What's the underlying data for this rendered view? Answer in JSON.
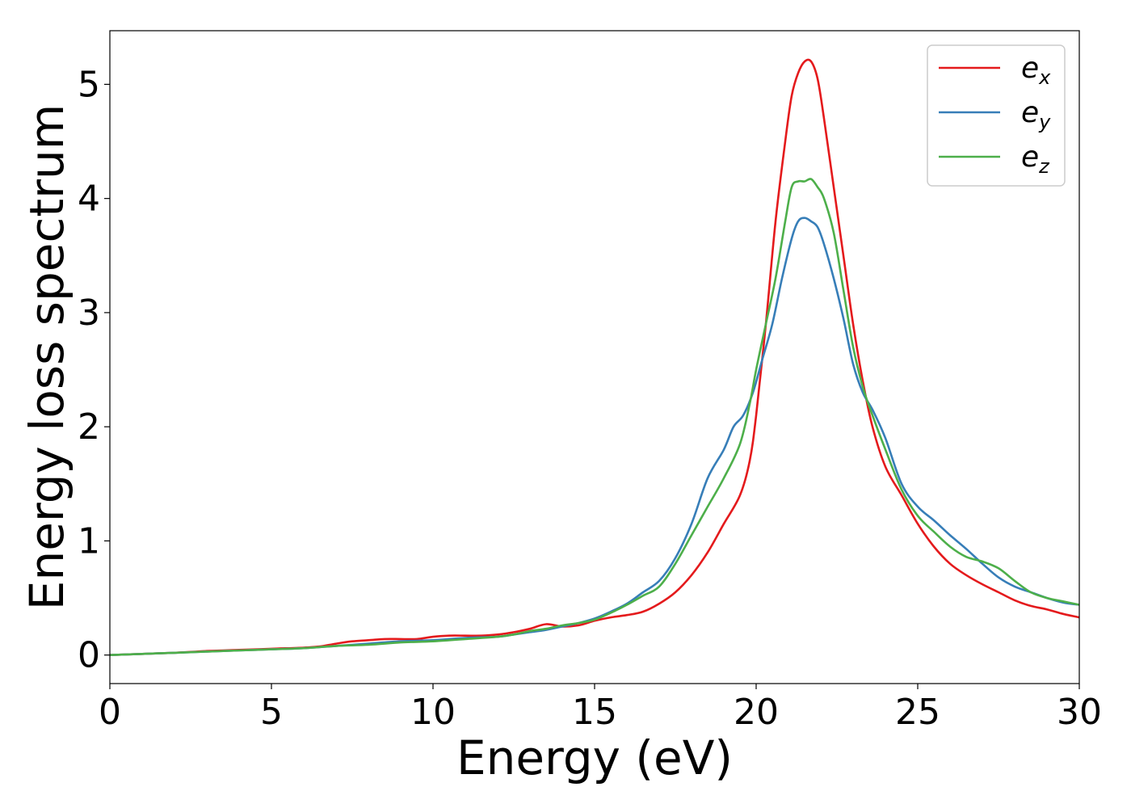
{
  "chart_data": {
    "type": "line",
    "xlabel": "Energy (eV)",
    "ylabel": "Energy loss spectrum",
    "xlim": [
      0,
      30
    ],
    "ylim": [
      -0.25,
      5.47
    ],
    "xticks": [
      0,
      5,
      10,
      15,
      20,
      25,
      30
    ],
    "yticks": [
      0,
      1,
      2,
      3,
      4,
      5
    ],
    "grid": false,
    "legend_position": "top-right",
    "series": [
      {
        "name": "e",
        "sub": "x",
        "color": "#e41a1c",
        "x": [
          0,
          1,
          2,
          3,
          4,
          5,
          6,
          6.5,
          7,
          7.5,
          8,
          8.5,
          9,
          9.5,
          10,
          10.5,
          11,
          11.5,
          12,
          12.5,
          13,
          13.5,
          14,
          14.5,
          15,
          15.5,
          16,
          16.5,
          17,
          17.5,
          18,
          18.5,
          19,
          19.5,
          19.8,
          20,
          20.3,
          20.6,
          20.9,
          21.1,
          21.3,
          21.5,
          21.7,
          21.9,
          22.1,
          22.4,
          22.7,
          23,
          23.3,
          23.6,
          24,
          24.5,
          25,
          25.5,
          26,
          26.5,
          27,
          27.5,
          28,
          28.5,
          29,
          29.5,
          30
        ],
        "y": [
          0,
          0.01,
          0.02,
          0.035,
          0.045,
          0.055,
          0.065,
          0.075,
          0.1,
          0.12,
          0.13,
          0.14,
          0.14,
          0.14,
          0.16,
          0.17,
          0.17,
          0.17,
          0.18,
          0.2,
          0.23,
          0.27,
          0.25,
          0.26,
          0.3,
          0.33,
          0.35,
          0.38,
          0.45,
          0.55,
          0.7,
          0.9,
          1.15,
          1.4,
          1.7,
          2.1,
          2.9,
          3.8,
          4.5,
          4.9,
          5.1,
          5.2,
          5.2,
          5.05,
          4.7,
          4.1,
          3.5,
          2.9,
          2.4,
          2.0,
          1.65,
          1.4,
          1.15,
          0.95,
          0.8,
          0.7,
          0.62,
          0.55,
          0.48,
          0.43,
          0.4,
          0.36,
          0.33
        ]
      },
      {
        "name": "e",
        "sub": "y",
        "color": "#377eb8",
        "x": [
          0,
          1,
          2,
          3,
          4,
          5,
          6,
          7,
          8,
          9,
          10,
          11,
          12,
          12.5,
          13,
          13.5,
          14,
          14.5,
          15,
          15.5,
          16,
          16.5,
          17,
          17.5,
          18,
          18.5,
          19,
          19.3,
          19.6,
          19.9,
          20.2,
          20.5,
          20.8,
          21.1,
          21.3,
          21.5,
          21.7,
          21.9,
          22.1,
          22.4,
          22.7,
          23,
          23.3,
          23.6,
          24,
          24.5,
          25,
          25.5,
          26,
          26.5,
          27,
          27.5,
          28,
          28.5,
          29,
          29.5,
          30
        ],
        "y": [
          0,
          0.01,
          0.02,
          0.03,
          0.04,
          0.05,
          0.06,
          0.08,
          0.1,
          0.12,
          0.13,
          0.15,
          0.16,
          0.18,
          0.2,
          0.22,
          0.25,
          0.28,
          0.32,
          0.38,
          0.45,
          0.55,
          0.65,
          0.85,
          1.15,
          1.55,
          1.8,
          2.0,
          2.1,
          2.3,
          2.6,
          2.9,
          3.3,
          3.65,
          3.8,
          3.83,
          3.8,
          3.75,
          3.6,
          3.3,
          2.95,
          2.55,
          2.3,
          2.15,
          1.9,
          1.5,
          1.3,
          1.18,
          1.05,
          0.93,
          0.8,
          0.68,
          0.6,
          0.55,
          0.5,
          0.46,
          0.44
        ]
      },
      {
        "name": "e",
        "sub": "z",
        "color": "#4daf4a",
        "x": [
          0,
          1,
          2,
          3,
          4,
          5,
          6,
          7,
          8,
          9,
          10,
          11,
          12,
          12.5,
          13,
          13.5,
          14,
          14.5,
          15,
          15.5,
          16,
          16.5,
          17,
          17.5,
          18,
          18.5,
          19,
          19.5,
          19.8,
          20,
          20.3,
          20.6,
          20.9,
          21.1,
          21.3,
          21.5,
          21.7,
          21.9,
          22.1,
          22.4,
          22.7,
          23,
          23.3,
          23.6,
          24,
          24.5,
          25,
          25.5,
          26,
          26.5,
          27,
          27.5,
          28,
          28.5,
          29,
          29.5,
          30
        ],
        "y": [
          0,
          0.01,
          0.02,
          0.03,
          0.04,
          0.05,
          0.06,
          0.08,
          0.09,
          0.11,
          0.12,
          0.14,
          0.16,
          0.18,
          0.21,
          0.23,
          0.26,
          0.28,
          0.31,
          0.37,
          0.44,
          0.52,
          0.6,
          0.8,
          1.05,
          1.3,
          1.55,
          1.85,
          2.2,
          2.5,
          2.9,
          3.3,
          3.8,
          4.1,
          4.15,
          4.15,
          4.17,
          4.1,
          4.0,
          3.7,
          3.2,
          2.7,
          2.35,
          2.1,
          1.8,
          1.45,
          1.22,
          1.08,
          0.95,
          0.86,
          0.82,
          0.76,
          0.65,
          0.55,
          0.5,
          0.47,
          0.44
        ]
      }
    ]
  }
}
